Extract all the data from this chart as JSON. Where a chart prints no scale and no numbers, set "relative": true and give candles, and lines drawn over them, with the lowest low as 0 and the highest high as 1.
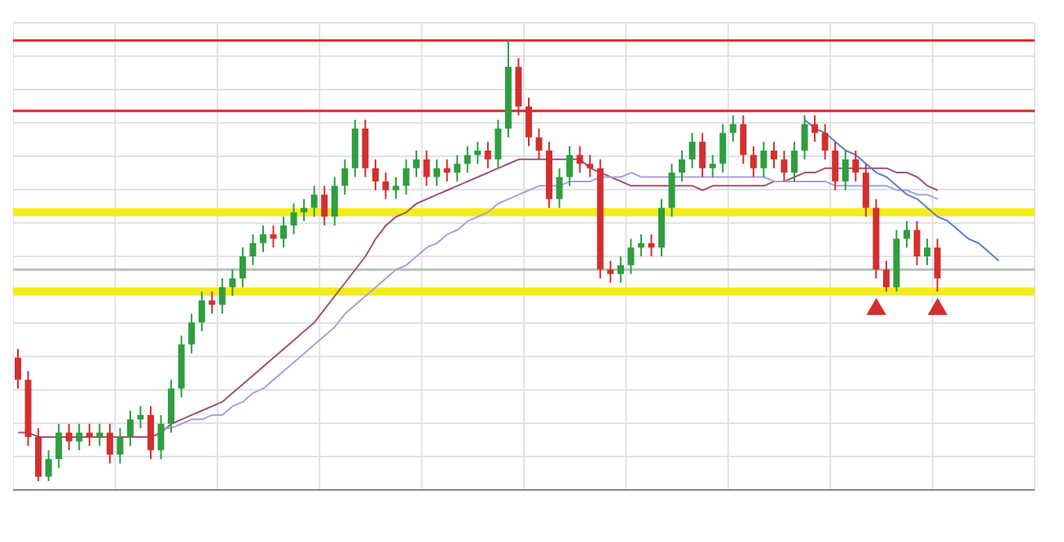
{
  "chart_data": {
    "type": "candlestick",
    "relative": true,
    "grid": true,
    "legend": false,
    "categories": [
      null,
      null,
      null,
      null,
      null,
      null,
      null,
      null,
      null,
      null,
      null,
      null,
      null,
      null,
      null,
      null,
      null,
      null,
      null,
      null,
      null,
      null,
      null,
      null,
      null,
      null,
      null,
      null,
      null,
      null,
      null,
      null,
      null,
      null,
      null,
      null,
      null,
      null,
      null,
      null,
      null,
      null,
      null,
      null,
      null,
      null,
      null,
      null,
      null,
      null,
      null,
      null,
      null,
      null,
      null,
      null,
      null,
      null,
      null,
      null,
      null,
      null,
      null,
      null,
      null,
      null,
      null,
      null,
      null,
      null,
      null,
      null,
      null,
      null,
      null,
      null,
      null,
      null,
      null,
      null,
      null,
      null,
      null,
      null,
      null,
      null,
      null,
      null,
      null,
      null,
      null,
      null,
      null,
      null,
      null,
      null,
      null,
      null,
      null,
      null
    ],
    "ohlc": [
      [
        0.28,
        0.3,
        0.21,
        0.23
      ],
      [
        0.23,
        0.25,
        0.08,
        0.1
      ],
      [
        0.1,
        0.12,
        0,
        0.01
      ],
      [
        0.01,
        0.07,
        0,
        0.05
      ],
      [
        0.05,
        0.13,
        0.03,
        0.11
      ],
      [
        0.11,
        0.13,
        0.07,
        0.09
      ],
      [
        0.09,
        0.13,
        0.07,
        0.11
      ],
      [
        0.11,
        0.13,
        0.08,
        0.1
      ],
      [
        0.1,
        0.13,
        0.08,
        0.11
      ],
      [
        0.11,
        0.13,
        0.04,
        0.06
      ],
      [
        0.06,
        0.12,
        0.04,
        0.1
      ],
      [
        0.1,
        0.16,
        0.08,
        0.14
      ],
      [
        0.14,
        0.17,
        0.12,
        0.15
      ],
      [
        0.15,
        0.17,
        0.05,
        0.07
      ],
      [
        0.07,
        0.15,
        0.05,
        0.13
      ],
      [
        0.13,
        0.23,
        0.11,
        0.21
      ],
      [
        0.21,
        0.33,
        0.19,
        0.31
      ],
      [
        0.31,
        0.38,
        0.29,
        0.36
      ],
      [
        0.36,
        0.43,
        0.34,
        0.41
      ],
      [
        0.41,
        0.43,
        0.38,
        0.4
      ],
      [
        0.4,
        0.46,
        0.38,
        0.44
      ],
      [
        0.44,
        0.48,
        0.42,
        0.46
      ],
      [
        0.46,
        0.53,
        0.44,
        0.51
      ],
      [
        0.51,
        0.56,
        0.49,
        0.54
      ],
      [
        0.54,
        0.58,
        0.52,
        0.56
      ],
      [
        0.56,
        0.58,
        0.53,
        0.55
      ],
      [
        0.55,
        0.6,
        0.53,
        0.58
      ],
      [
        0.58,
        0.63,
        0.56,
        0.61
      ],
      [
        0.61,
        0.64,
        0.59,
        0.62
      ],
      [
        0.62,
        0.67,
        0.6,
        0.65
      ],
      [
        0.65,
        0.67,
        0.58,
        0.6
      ],
      [
        0.6,
        0.69,
        0.58,
        0.67
      ],
      [
        0.67,
        0.73,
        0.65,
        0.71
      ],
      [
        0.71,
        0.82,
        0.69,
        0.8
      ],
      [
        0.8,
        0.82,
        0.69,
        0.71
      ],
      [
        0.71,
        0.73,
        0.66,
        0.68
      ],
      [
        0.68,
        0.7,
        0.64,
        0.66
      ],
      [
        0.66,
        0.69,
        0.64,
        0.67
      ],
      [
        0.67,
        0.73,
        0.65,
        0.71
      ],
      [
        0.71,
        0.75,
        0.69,
        0.73
      ],
      [
        0.73,
        0.75,
        0.67,
        0.69
      ],
      [
        0.69,
        0.73,
        0.67,
        0.71
      ],
      [
        0.71,
        0.73,
        0.68,
        0.7
      ],
      [
        0.7,
        0.74,
        0.68,
        0.72
      ],
      [
        0.72,
        0.76,
        0.7,
        0.74
      ],
      [
        0.74,
        0.77,
        0.72,
        0.75
      ],
      [
        0.75,
        0.77,
        0.71,
        0.73
      ],
      [
        0.73,
        0.82,
        0.71,
        0.8
      ],
      [
        0.8,
        1,
        0.78,
        0.94
      ],
      [
        0.94,
        0.96,
        0.83,
        0.85
      ],
      [
        0.85,
        0.87,
        0.76,
        0.78
      ],
      [
        0.78,
        0.8,
        0.73,
        0.75
      ],
      [
        0.75,
        0.77,
        0.62,
        0.64
      ],
      [
        0.64,
        0.71,
        0.62,
        0.69
      ],
      [
        0.69,
        0.76,
        0.67,
        0.74
      ],
      [
        0.74,
        0.76,
        0.7,
        0.72
      ],
      [
        0.72,
        0.74,
        0.69,
        0.71
      ],
      [
        0.71,
        0.73,
        0.46,
        0.48
      ],
      [
        0.48,
        0.5,
        0.45,
        0.47
      ],
      [
        0.47,
        0.51,
        0.45,
        0.49
      ],
      [
        0.49,
        0.55,
        0.47,
        0.53
      ],
      [
        0.53,
        0.56,
        0.51,
        0.54
      ],
      [
        0.54,
        0.56,
        0.51,
        0.53
      ],
      [
        0.53,
        0.64,
        0.51,
        0.62
      ],
      [
        0.62,
        0.72,
        0.6,
        0.7
      ],
      [
        0.7,
        0.75,
        0.68,
        0.73
      ],
      [
        0.73,
        0.79,
        0.71,
        0.77
      ],
      [
        0.77,
        0.79,
        0.69,
        0.71
      ],
      [
        0.71,
        0.74,
        0.69,
        0.72
      ],
      [
        0.72,
        0.81,
        0.7,
        0.79
      ],
      [
        0.79,
        0.83,
        0.77,
        0.81
      ],
      [
        0.81,
        0.83,
        0.72,
        0.74
      ],
      [
        0.74,
        0.76,
        0.69,
        0.71
      ],
      [
        0.71,
        0.77,
        0.69,
        0.75
      ],
      [
        0.75,
        0.77,
        0.71,
        0.73
      ],
      [
        0.73,
        0.75,
        0.68,
        0.7
      ],
      [
        0.7,
        0.77,
        0.68,
        0.75
      ],
      [
        0.75,
        0.83,
        0.73,
        0.81
      ],
      [
        0.81,
        0.83,
        0.77,
        0.79
      ],
      [
        0.79,
        0.81,
        0.73,
        0.75
      ],
      [
        0.75,
        0.77,
        0.66,
        0.68
      ],
      [
        0.68,
        0.75,
        0.66,
        0.73
      ],
      [
        0.73,
        0.75,
        0.68,
        0.7
      ],
      [
        0.7,
        0.72,
        0.6,
        0.62
      ],
      [
        0.62,
        0.64,
        0.46,
        0.48
      ],
      [
        0.48,
        0.5,
        0.43,
        0.44
      ],
      [
        0.44,
        0.57,
        0.43,
        0.55
      ],
      [
        0.55,
        0.59,
        0.53,
        0.57
      ],
      [
        0.57,
        0.59,
        0.49,
        0.51
      ],
      [
        0.51,
        0.55,
        0.49,
        0.53
      ],
      [
        0.53,
        0.55,
        0.43,
        0.46
      ],
      null,
      null,
      null,
      null,
      null,
      null,
      null,
      null,
      null
    ],
    "colors": [
      "#d32f2f",
      "#d32f2f",
      "#d32f2f",
      "#2e9e3e",
      "#2e9e3e",
      "#d32f2f",
      "#2e9e3e",
      "#d32f2f",
      "#2e9e3e",
      "#d32f2f",
      "#2e9e3e",
      "#2e9e3e",
      "#2e9e3e",
      "#d32f2f",
      "#2e9e3e",
      "#2e9e3e",
      "#2e9e3e",
      "#2e9e3e",
      "#2e9e3e",
      "#d32f2f",
      "#2e9e3e",
      "#2e9e3e",
      "#2e9e3e",
      "#2e9e3e",
      "#2e9e3e",
      "#d32f2f",
      "#2e9e3e",
      "#2e9e3e",
      "#2e9e3e",
      "#2e9e3e",
      "#d32f2f",
      "#2e9e3e",
      "#2e9e3e",
      "#2e9e3e",
      "#d32f2f",
      "#d32f2f",
      "#d32f2f",
      "#2e9e3e",
      "#2e9e3e",
      "#2e9e3e",
      "#d32f2f",
      "#2e9e3e",
      "#d32f2f",
      "#2e9e3e",
      "#2e9e3e",
      "#2e9e3e",
      "#d32f2f",
      "#2e9e3e",
      "#2e9e3e",
      "#d32f2f",
      "#d32f2f",
      "#d32f2f",
      "#d32f2f",
      "#2e9e3e",
      "#2e9e3e",
      "#d32f2f",
      "#d32f2f",
      "#d32f2f",
      "#d32f2f",
      "#2e9e3e",
      "#2e9e3e",
      "#2e9e3e",
      "#d32f2f",
      "#2e9e3e",
      "#2e9e3e",
      "#2e9e3e",
      "#2e9e3e",
      "#d32f2f",
      "#2e9e3e",
      "#2e9e3e",
      "#2e9e3e",
      "#d32f2f",
      "#d32f2f",
      "#2e9e3e",
      "#d32f2f",
      "#d32f2f",
      "#2e9e3e",
      "#2e9e3e",
      "#d32f2f",
      "#d32f2f",
      "#d32f2f",
      "#2e9e3e",
      "#d32f2f",
      "#d32f2f",
      "#d32f2f",
      "#d32f2f",
      "#2e9e3e",
      "#2e9e3e",
      "#d32f2f",
      "#2e9e3e",
      "#d32f2f",
      null,
      null,
      null,
      null,
      null,
      null,
      null,
      null,
      null
    ],
    "series": [
      {
        "type": "line",
        "color": "#a0527a",
        "values": [
          0.11,
          0.11,
          0.1,
          0.1,
          0.1,
          0.1,
          0.1,
          0.1,
          0.1,
          0.1,
          0.1,
          0.1,
          0.1,
          0.1,
          0.11,
          0.13,
          0.14,
          0.15,
          0.16,
          0.17,
          0.18,
          0.2,
          0.22,
          0.24,
          0.26,
          0.28,
          0.3,
          0.32,
          0.34,
          0.36,
          0.39,
          0.42,
          0.45,
          0.48,
          0.51,
          0.55,
          0.58,
          0.6,
          0.61,
          0.63,
          0.64,
          0.65,
          0.66,
          0.67,
          0.68,
          0.69,
          0.7,
          0.71,
          0.72,
          0.73,
          0.73,
          0.73,
          0.73,
          0.73,
          0.73,
          0.73,
          0.71,
          0.7,
          0.69,
          0.68,
          0.67,
          0.67,
          0.67,
          0.67,
          0.67,
          0.67,
          0.67,
          0.66,
          0.67,
          0.67,
          0.67,
          0.67,
          0.67,
          0.67,
          0.68,
          0.68,
          0.69,
          0.7,
          0.7,
          0.71,
          0.71,
          0.71,
          0.71,
          0.71,
          0.71,
          0.71,
          0.7,
          0.7,
          0.69,
          0.67,
          0.66,
          null,
          null,
          null,
          null,
          null,
          null,
          null,
          null,
          null
        ]
      },
      {
        "type": "line",
        "color": "#a9a0e0",
        "values": [
          null,
          null,
          null,
          null,
          null,
          null,
          null,
          null,
          null,
          null,
          null,
          null,
          null,
          null,
          0.12,
          0.12,
          0.13,
          0.14,
          0.14,
          0.15,
          0.15,
          0.17,
          0.18,
          0.2,
          0.21,
          0.23,
          0.25,
          0.27,
          0.29,
          0.31,
          0.33,
          0.35,
          0.38,
          0.4,
          0.42,
          0.44,
          0.46,
          0.48,
          0.49,
          0.51,
          0.53,
          0.54,
          0.56,
          0.57,
          0.59,
          0.6,
          0.61,
          0.63,
          0.64,
          0.65,
          0.66,
          0.67,
          0.67,
          0.67,
          0.68,
          0.68,
          0.68,
          0.69,
          0.69,
          0.69,
          0.7,
          0.69,
          0.69,
          0.69,
          0.69,
          0.69,
          0.69,
          0.69,
          0.69,
          0.69,
          0.69,
          0.69,
          0.69,
          0.69,
          0.68,
          0.68,
          0.68,
          0.68,
          0.68,
          0.68,
          0.67,
          0.67,
          0.67,
          0.67,
          0.67,
          0.67,
          0.66,
          0.66,
          0.65,
          0.65,
          0.64,
          null,
          null,
          null,
          null,
          null,
          null,
          null,
          null,
          null
        ]
      },
      {
        "type": "line",
        "color": "#5b7fd1",
        "values": [
          null,
          null,
          null,
          null,
          null,
          null,
          null,
          null,
          null,
          null,
          null,
          null,
          null,
          null,
          null,
          null,
          null,
          null,
          null,
          null,
          null,
          null,
          null,
          null,
          null,
          null,
          null,
          null,
          null,
          null,
          null,
          null,
          null,
          null,
          null,
          null,
          null,
          null,
          null,
          null,
          null,
          null,
          null,
          null,
          null,
          null,
          null,
          null,
          null,
          null,
          null,
          null,
          null,
          null,
          null,
          null,
          null,
          null,
          null,
          null,
          null,
          null,
          null,
          null,
          null,
          null,
          null,
          null,
          null,
          null,
          null,
          null,
          null,
          null,
          null,
          null,
          null,
          0.82,
          0.8,
          0.79,
          0.77,
          0.75,
          0.74,
          0.72,
          0.7,
          0.69,
          0.67,
          0.65,
          0.64,
          0.62,
          0.6,
          0.59,
          0.57,
          0.55,
          0.54,
          0.52,
          0.5,
          null,
          null,
          null
        ]
      },
      {
        "type": "scatter",
        "marker": "triangle",
        "color": "#d32f2f",
        "values": [
          null,
          null,
          null,
          null,
          null,
          null,
          null,
          null,
          null,
          null,
          null,
          null,
          null,
          null,
          null,
          null,
          null,
          null,
          null,
          null,
          null,
          null,
          null,
          null,
          null,
          null,
          null,
          null,
          null,
          null,
          null,
          null,
          null,
          null,
          null,
          null,
          null,
          null,
          null,
          null,
          null,
          null,
          null,
          null,
          null,
          null,
          null,
          null,
          null,
          null,
          null,
          null,
          null,
          null,
          null,
          null,
          null,
          null,
          null,
          null,
          null,
          null,
          null,
          null,
          null,
          null,
          null,
          null,
          null,
          null,
          null,
          null,
          null,
          null,
          null,
          null,
          null,
          null,
          null,
          null,
          null,
          null,
          null,
          null,
          0.39,
          null,
          null,
          null,
          null,
          null,
          0.39,
          null,
          null,
          null,
          null,
          null,
          null,
          null,
          null,
          null
        ]
      }
    ],
    "ref_lines": [
      {
        "axis": "y",
        "value": 1,
        "color": "#e0262b"
      },
      {
        "axis": "y",
        "value": 0.84,
        "color": "#e0262b"
      },
      {
        "axis": "y",
        "value": 0.61,
        "color": "#f4ec1a"
      },
      {
        "axis": "y",
        "value": 0.43,
        "color": "#f4ec1a"
      },
      {
        "axis": "y",
        "value": 0.48,
        "color": "#b5c2b5"
      }
    ]
  }
}
